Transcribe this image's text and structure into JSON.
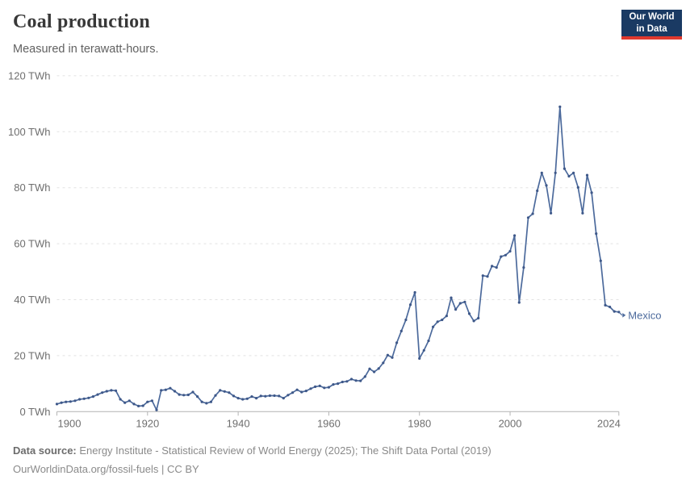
{
  "header": {
    "title": "Coal production",
    "subtitle": "Measured in terawatt-hours."
  },
  "logo": {
    "line1": "Our World",
    "line2": "in Data",
    "bg_color": "#1a3a63",
    "bar_color": "#e0392e"
  },
  "chart_data": {
    "type": "line",
    "title": "Coal production",
    "unit": "TWh",
    "grid": "horizontal-dashed",
    "xlim": [
      1900,
      2024
    ],
    "ylim": [
      0,
      120
    ],
    "x_ticks": [
      1900,
      1920,
      1940,
      1960,
      1980,
      2000,
      2024
    ],
    "y_ticks": [
      0,
      20,
      40,
      60,
      80,
      100,
      120
    ],
    "y_tick_suffix": " TWh",
    "line_color": "#4c6a9c",
    "marker_color": "#3e5889",
    "series": [
      {
        "name": "Mexico",
        "x_start": 1900,
        "x_step": 1,
        "values": [
          2.7,
          3.2,
          3.5,
          3.6,
          3.9,
          4.4,
          4.6,
          4.9,
          5.4,
          6.1,
          6.8,
          7.3,
          7.6,
          7.5,
          4.4,
          3.2,
          3.9,
          2.7,
          2.0,
          2.1,
          3.5,
          3.9,
          0.6,
          7.6,
          7.8,
          8.4,
          7.3,
          6.1,
          5.9,
          6.0,
          7.0,
          5.4,
          3.5,
          3.0,
          3.5,
          5.8,
          7.6,
          7.2,
          6.8,
          5.6,
          4.8,
          4.4,
          4.6,
          5.4,
          4.8,
          5.6,
          5.5,
          5.7,
          5.7,
          5.6,
          4.8,
          5.9,
          6.8,
          7.8,
          7.0,
          7.4,
          8.2,
          8.9,
          9.2,
          8.5,
          8.7,
          9.7,
          10.0,
          10.6,
          10.8,
          11.6,
          11.1,
          11.0,
          12.5,
          15.3,
          14.2,
          15.4,
          17.4,
          20.2,
          19.3,
          24.6,
          28.8,
          32.8,
          38.2,
          42.6,
          19.0,
          21.9,
          25.3,
          30.3,
          32.1,
          32.8,
          34.2,
          40.7,
          36.5,
          38.7,
          39.2,
          35.0,
          32.4,
          33.4,
          48.6,
          48.3,
          52.0,
          51.5,
          55.4,
          55.9,
          57.3,
          62.9,
          39.0,
          51.5,
          69.3,
          70.7,
          78.9,
          85.3,
          80.8,
          70.9,
          85.3,
          108.9,
          86.8,
          84.1,
          85.3,
          80.1,
          70.9,
          84.5,
          78.2,
          63.6,
          53.9,
          38.0,
          37.4,
          35.8,
          35.6
        ]
      }
    ]
  },
  "footer": {
    "source_label": "Data source:",
    "source_text": " Energy Institute - Statistical Review of World Energy (2025); The Shift Data Portal (2019)",
    "license_line": "OurWorldinData.org/fossil-fuels | CC BY"
  }
}
